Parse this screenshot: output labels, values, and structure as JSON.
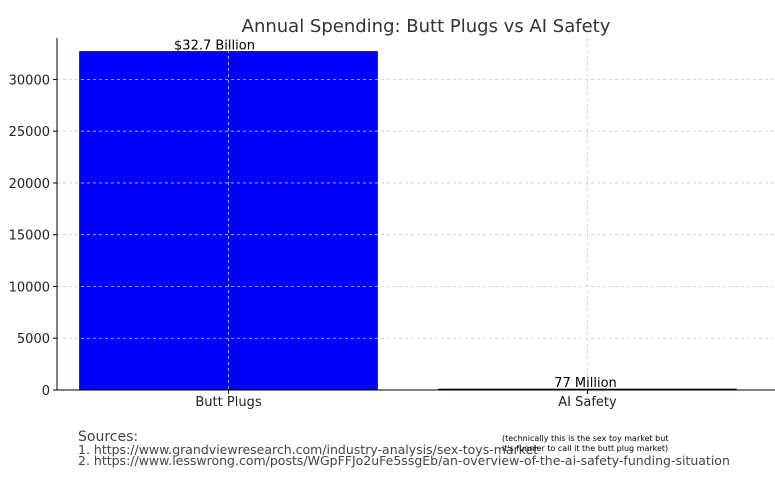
{
  "chart_data": {
    "type": "bar",
    "title": "Annual Spending: Butt Plugs vs AI Safety",
    "xlabel": "",
    "ylabel": "",
    "categories": [
      "Butt Plugs",
      "AI Safety"
    ],
    "values": [
      32700,
      77
    ],
    "data_labels": [
      "$32.7 Billion",
      "77 Million"
    ],
    "colors": [
      "#0000ff",
      "#000080"
    ],
    "ylim": [
      0,
      34000
    ],
    "yticks": [
      0,
      5000,
      10000,
      15000,
      20000,
      25000,
      30000
    ],
    "grid": true
  },
  "sources": {
    "heading": "Sources:",
    "items": [
      "1. https://www.grandviewresearch.com/industry-analysis/sex-toys-market",
      "2. https://www.lesswrong.com/posts/WGpFFJo2uFe5ssgEb/an-overview-of-the-ai-safety-funding-situation"
    ],
    "note_lines": [
      "(technically this is the sex toy market but",
      "it's funnier to call it the butt plug market)"
    ]
  }
}
